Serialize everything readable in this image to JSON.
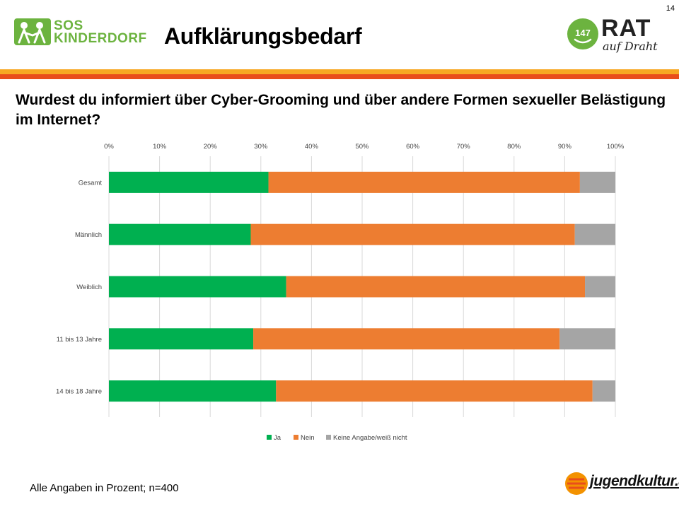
{
  "slide_number": "14",
  "title": "Aufklärungsbedarf",
  "logo_left": {
    "line1": "SOS",
    "line2": "KINDERDORF",
    "color": "#6cb33f"
  },
  "logo_right": {
    "number": "147",
    "name": "RAT",
    "tagline": "auf Draht",
    "color": "#6cb33f"
  },
  "question": "Wurdest du informiert über Cyber-Grooming und über andere Formen sexueller Belästigung im Internet?",
  "footer_note": "Alle Angaben in Prozent; n=400",
  "footer_logo": "jugendkultur.at",
  "colors": {
    "band_top": "#f7a823",
    "band_bottom": "#e94e1b",
    "ja": "#00b050",
    "nein": "#ed7d31",
    "keine": "#a5a5a5"
  },
  "chart_data": {
    "type": "bar",
    "orientation": "horizontal",
    "stacked": true,
    "categories": [
      "Gesamt",
      "Männlich",
      "Weiblich",
      "11 bis 13 Jahre",
      "14 bis 18 Jahre"
    ],
    "series": [
      {
        "name": "Ja",
        "color": "#00b050",
        "values": [
          31.5,
          28,
          35,
          28.5,
          33
        ]
      },
      {
        "name": "Nein",
        "color": "#ed7d31",
        "values": [
          61.5,
          64,
          59,
          60.5,
          62.5
        ]
      },
      {
        "name": "Keine Angabe/weiß nicht",
        "color": "#a5a5a5",
        "values": [
          7,
          8,
          6,
          11,
          4.5
        ]
      }
    ],
    "xticks": [
      "0%",
      "10%",
      "20%",
      "30%",
      "40%",
      "50%",
      "60%",
      "70%",
      "80%",
      "90%",
      "100%"
    ],
    "xlim": [
      0,
      100
    ],
    "legend_position": "bottom",
    "grid": true
  }
}
